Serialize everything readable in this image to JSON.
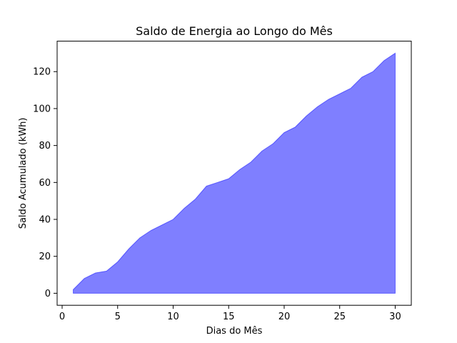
{
  "chart_data": {
    "type": "area",
    "title": "Saldo de Energia ao Longo do Mês",
    "xlabel": "Dias do Mês",
    "ylabel": "Saldo Acumulado (kWh)",
    "xlim": [
      -0.45,
      31.45
    ],
    "ylim": [
      -6.5,
      136.5
    ],
    "xticks": [
      0,
      5,
      10,
      15,
      20,
      25,
      30
    ],
    "yticks": [
      0,
      20,
      40,
      60,
      80,
      100,
      120
    ],
    "grid": false,
    "legend": "none",
    "series": [
      {
        "color": "#0000ff",
        "alpha": 0.5,
        "x": [
          1,
          2,
          3,
          4,
          5,
          6,
          7,
          8,
          9,
          10,
          11,
          12,
          13,
          14,
          15,
          16,
          17,
          18,
          19,
          20,
          21,
          22,
          23,
          24,
          25,
          26,
          27,
          28,
          29,
          30
        ],
        "y": [
          2,
          8,
          11,
          12,
          17,
          24,
          30,
          34,
          37,
          40,
          46,
          51,
          58,
          60,
          62,
          67,
          71,
          77,
          81,
          87,
          90,
          96,
          101,
          105,
          108,
          111,
          117,
          120,
          126,
          130
        ],
        "baseline": 0
      }
    ]
  }
}
